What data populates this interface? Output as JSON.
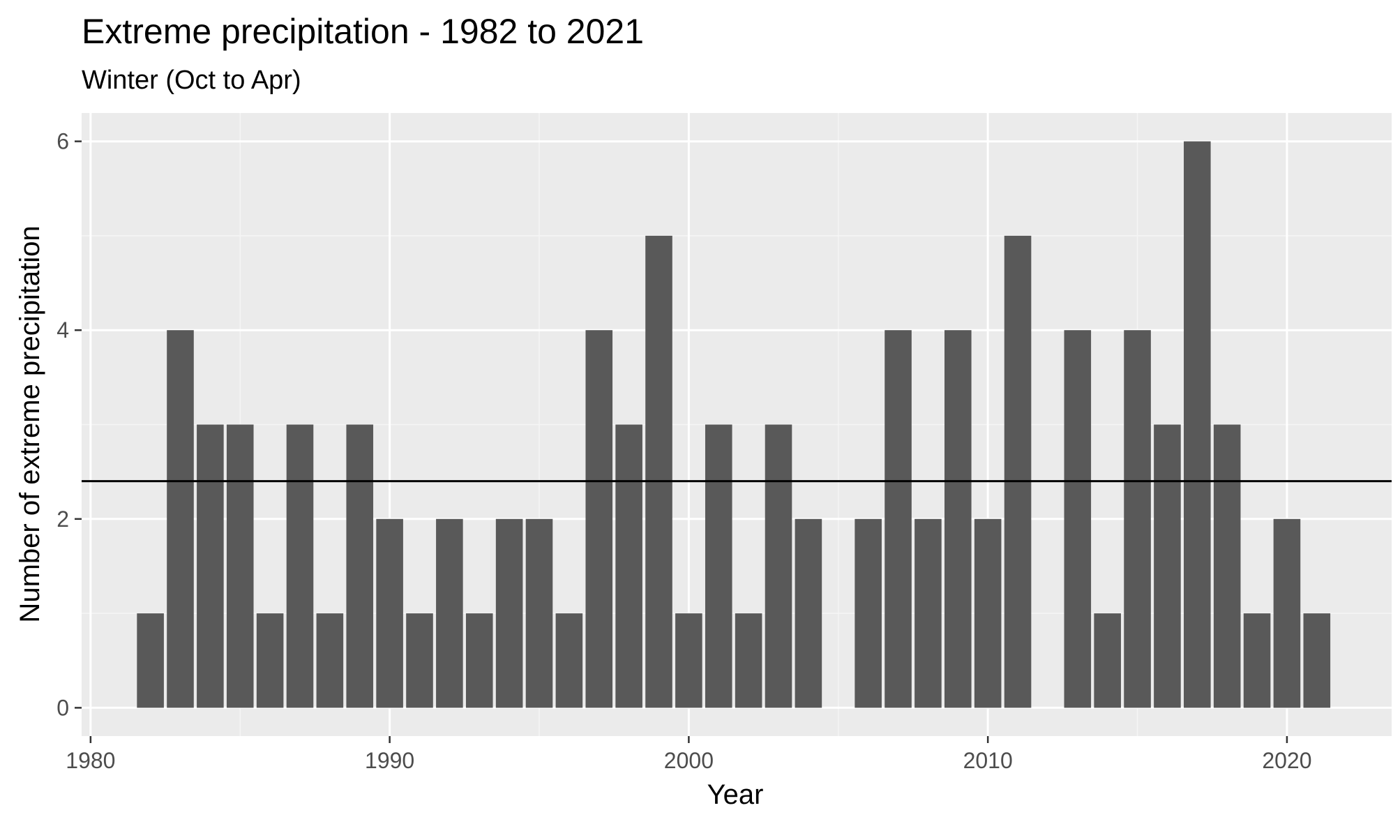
{
  "chart_data": {
    "type": "bar",
    "title": "Extreme precipitation - 1982 to 2021",
    "subtitle": "Winter (Oct to Apr)",
    "xlabel": "Year",
    "ylabel": "Number of extreme precipitation",
    "x": [
      1982,
      1983,
      1984,
      1985,
      1986,
      1987,
      1988,
      1989,
      1990,
      1991,
      1992,
      1993,
      1994,
      1995,
      1996,
      1997,
      1998,
      1999,
      2000,
      2001,
      2002,
      2003,
      2004,
      2005,
      2006,
      2007,
      2008,
      2009,
      2010,
      2011,
      2012,
      2013,
      2014,
      2015,
      2016,
      2017,
      2018,
      2019,
      2020,
      2021
    ],
    "values": [
      1,
      4,
      3,
      3,
      1,
      3,
      1,
      3,
      2,
      1,
      2,
      1,
      2,
      2,
      1,
      4,
      3,
      5,
      1,
      3,
      1,
      3,
      2,
      0,
      2,
      4,
      2,
      4,
      2,
      5,
      0,
      4,
      1,
      4,
      3,
      6,
      3,
      1,
      2,
      1
    ],
    "mean_line": 2.4,
    "xlim": [
      1979.7,
      2023.5
    ],
    "ylim": [
      -0.3,
      6.3
    ],
    "xticks": [
      1980,
      1990,
      2000,
      2010,
      2020
    ],
    "yticks": [
      0,
      2,
      4,
      6
    ],
    "grid": true,
    "colors": {
      "bar": "#595959",
      "panel": "#ebebeb",
      "grid_major": "#ffffff",
      "mean_line": "#000000"
    }
  }
}
